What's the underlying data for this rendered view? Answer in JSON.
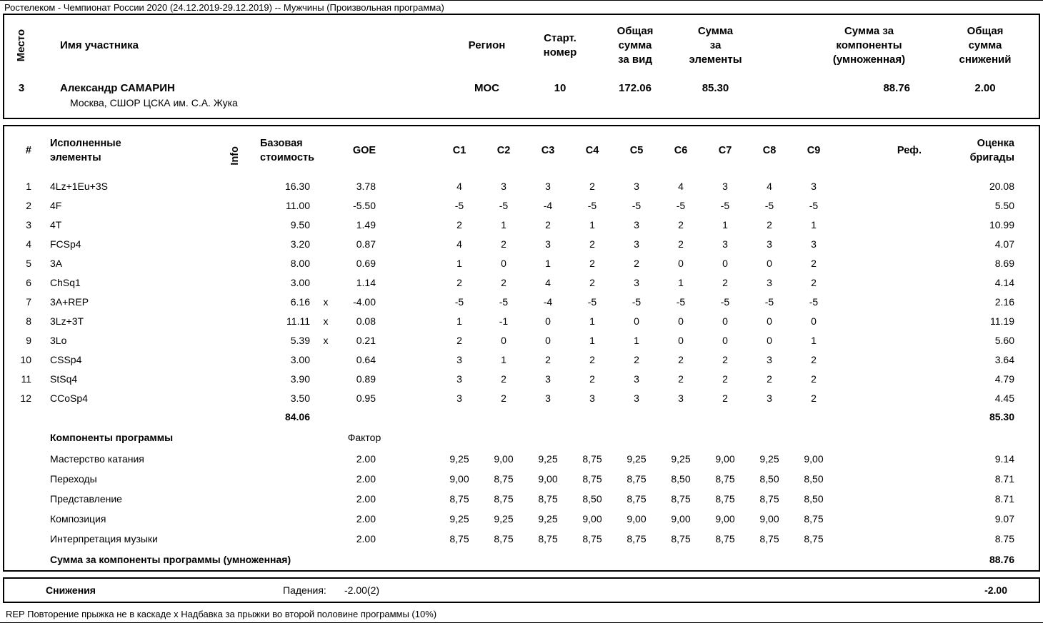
{
  "page": {
    "title": "Ростелеком - Чемпионат России 2020 (24.12.2019-29.12.2019)  --  Мужчины  (Произвольная программа)",
    "footer": "REP Повторение прыжка не в каскаде   x Надбавка за прыжки во второй половине программы (10%)"
  },
  "summary": {
    "headers": {
      "place": "Место",
      "name": "Имя участника",
      "region": "Регион",
      "start_number": "Старт.\nномер",
      "total_segment": "Общая\nсумма\nза вид",
      "element_score": "Сумма\nза\nэлементы",
      "component_score": "Сумма за\nкомпоненты\n(умноженная)",
      "deductions": "Общая\nсумма\nснижений"
    },
    "row": {
      "place": "3",
      "name": "Александр САМАРИН",
      "club": "Москва, СШОР ЦСКА им. С.А. Жука",
      "region": "МОС",
      "start_number": "10",
      "total_segment": "172.06",
      "element_score": "85.30",
      "component_score": "88.76",
      "deductions": "2.00"
    }
  },
  "elements_table": {
    "headers": {
      "num": "#",
      "elements": "Исполненные\nэлементы",
      "info": "Info",
      "base": "Базовая\nстоимость",
      "goe": "GOE",
      "ref": "Реф.",
      "panel": "Оценка\nбригады"
    },
    "judge_columns": [
      "С1",
      "С2",
      "С3",
      "С4",
      "С5",
      "С6",
      "С7",
      "С8",
      "С9"
    ],
    "rows": [
      {
        "num": "1",
        "element": "4Lz+1Eu+3S",
        "info": "",
        "base": "16.30",
        "x": "",
        "goe": "3.78",
        "scores": [
          "4",
          "3",
          "3",
          "2",
          "3",
          "4",
          "3",
          "4",
          "3"
        ],
        "ref": "",
        "panel": "20.08"
      },
      {
        "num": "2",
        "element": "4F",
        "info": "",
        "base": "11.00",
        "x": "",
        "goe": "-5.50",
        "scores": [
          "-5",
          "-5",
          "-4",
          "-5",
          "-5",
          "-5",
          "-5",
          "-5",
          "-5"
        ],
        "ref": "",
        "panel": "5.50"
      },
      {
        "num": "3",
        "element": "4T",
        "info": "",
        "base": "9.50",
        "x": "",
        "goe": "1.49",
        "scores": [
          "2",
          "1",
          "2",
          "1",
          "3",
          "2",
          "1",
          "2",
          "1"
        ],
        "ref": "",
        "panel": "10.99"
      },
      {
        "num": "4",
        "element": "FCSp4",
        "info": "",
        "base": "3.20",
        "x": "",
        "goe": "0.87",
        "scores": [
          "4",
          "2",
          "3",
          "2",
          "3",
          "2",
          "3",
          "3",
          "3"
        ],
        "ref": "",
        "panel": "4.07"
      },
      {
        "num": "5",
        "element": "3A",
        "info": "",
        "base": "8.00",
        "x": "",
        "goe": "0.69",
        "scores": [
          "1",
          "0",
          "1",
          "2",
          "2",
          "0",
          "0",
          "0",
          "2"
        ],
        "ref": "",
        "panel": "8.69"
      },
      {
        "num": "6",
        "element": "ChSq1",
        "info": "",
        "base": "3.00",
        "x": "",
        "goe": "1.14",
        "scores": [
          "2",
          "2",
          "4",
          "2",
          "3",
          "1",
          "2",
          "3",
          "2"
        ],
        "ref": "",
        "panel": "4.14"
      },
      {
        "num": "7",
        "element": "3A+REP",
        "info": "",
        "base": "6.16",
        "x": "x",
        "goe": "-4.00",
        "scores": [
          "-5",
          "-5",
          "-4",
          "-5",
          "-5",
          "-5",
          "-5",
          "-5",
          "-5"
        ],
        "ref": "",
        "panel": "2.16"
      },
      {
        "num": "8",
        "element": "3Lz+3T",
        "info": "",
        "base": "11.11",
        "x": "x",
        "goe": "0.08",
        "scores": [
          "1",
          "-1",
          "0",
          "1",
          "0",
          "0",
          "0",
          "0",
          "0"
        ],
        "ref": "",
        "panel": "11.19"
      },
      {
        "num": "9",
        "element": "3Lo",
        "info": "",
        "base": "5.39",
        "x": "x",
        "goe": "0.21",
        "scores": [
          "2",
          "0",
          "0",
          "1",
          "1",
          "0",
          "0",
          "0",
          "1"
        ],
        "ref": "",
        "panel": "5.60"
      },
      {
        "num": "10",
        "element": "CSSp4",
        "info": "",
        "base": "3.00",
        "x": "",
        "goe": "0.64",
        "scores": [
          "3",
          "1",
          "2",
          "2",
          "2",
          "2",
          "2",
          "3",
          "2"
        ],
        "ref": "",
        "panel": "3.64"
      },
      {
        "num": "11",
        "element": "StSq4",
        "info": "",
        "base": "3.90",
        "x": "",
        "goe": "0.89",
        "scores": [
          "3",
          "2",
          "3",
          "2",
          "3",
          "2",
          "2",
          "2",
          "2"
        ],
        "ref": "",
        "panel": "4.79"
      },
      {
        "num": "12",
        "element": "CCoSp4",
        "info": "",
        "base": "3.50",
        "x": "",
        "goe": "0.95",
        "scores": [
          "3",
          "2",
          "3",
          "3",
          "3",
          "3",
          "2",
          "3",
          "2"
        ],
        "ref": "",
        "panel": "4.45"
      }
    ],
    "base_total": "84.06",
    "elements_total": "85.30"
  },
  "components": {
    "section_label": "Компоненты программы",
    "factor_label": "Фактор",
    "rows": [
      {
        "name": "Мастерство катания",
        "factor": "2.00",
        "scores": [
          "9,25",
          "9,00",
          "9,25",
          "8,75",
          "9,25",
          "9,25",
          "9,00",
          "9,25",
          "9,00"
        ],
        "panel": "9.14"
      },
      {
        "name": "Переходы",
        "factor": "2.00",
        "scores": [
          "9,00",
          "8,75",
          "9,00",
          "8,75",
          "8,75",
          "8,50",
          "8,75",
          "8,50",
          "8,50"
        ],
        "panel": "8.71"
      },
      {
        "name": "Представление",
        "factor": "2.00",
        "scores": [
          "8,75",
          "8,75",
          "8,75",
          "8,50",
          "8,75",
          "8,75",
          "8,75",
          "8,75",
          "8,50"
        ],
        "panel": "8.71"
      },
      {
        "name": "Композиция",
        "factor": "2.00",
        "scores": [
          "9,25",
          "9,25",
          "9,25",
          "9,00",
          "9,00",
          "9,00",
          "9,00",
          "9,00",
          "8,75"
        ],
        "panel": "9.07"
      },
      {
        "name": "Интерпретация музыки",
        "factor": "2.00",
        "scores": [
          "8,75",
          "8,75",
          "8,75",
          "8,75",
          "8,75",
          "8,75",
          "8,75",
          "8,75",
          "8,75"
        ],
        "panel": "8.75"
      }
    ],
    "total_label": "Сумма за компоненты программы (умноженная)",
    "total": "88.76"
  },
  "deductions": {
    "label": "Снижения",
    "reason_label": "Падения:",
    "value": "-2.00(2)",
    "total": "-2.00"
  }
}
